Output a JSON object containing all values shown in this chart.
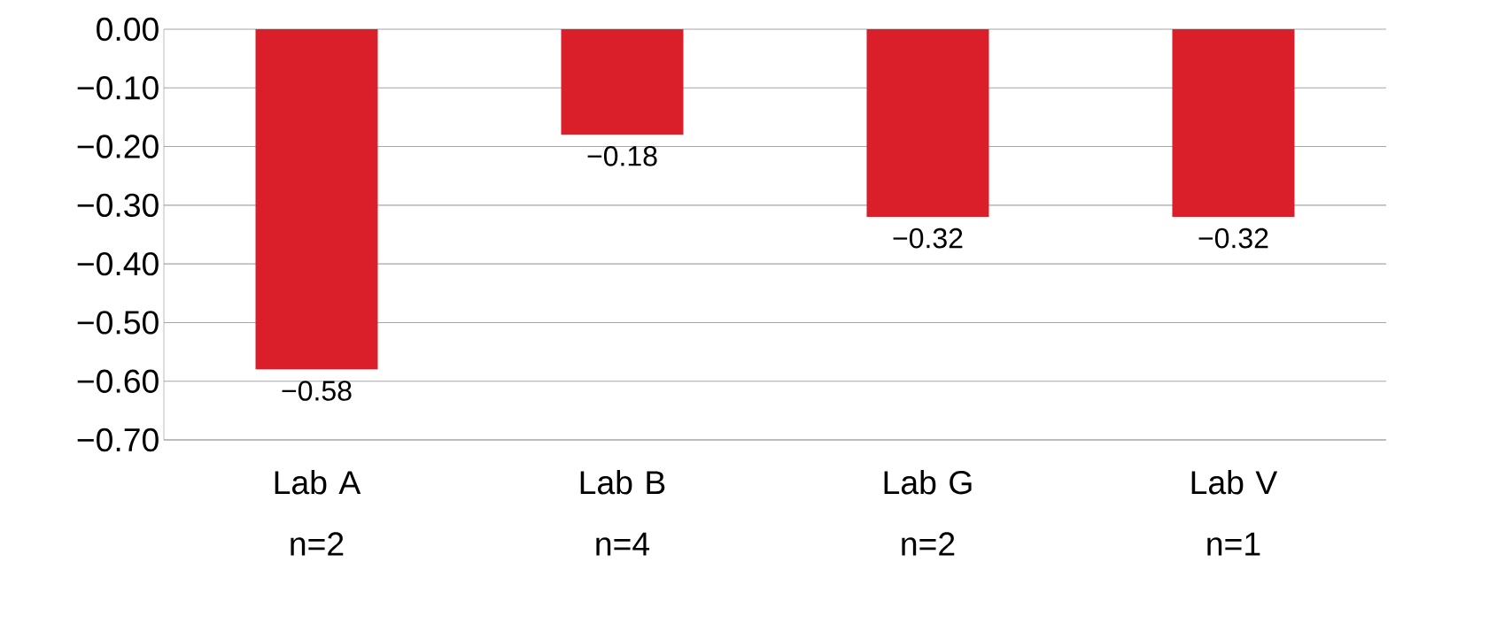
{
  "chart_data": {
    "type": "bar",
    "categories": [
      "Lab A n=2",
      "Lab B n=4",
      "Lab G n=2",
      "Lab V n=1"
    ],
    "values": [
      -0.58,
      -0.18,
      -0.32,
      -0.32
    ],
    "value_labels": [
      "−0.58",
      "−0.18",
      "−0.32",
      "−0.32"
    ],
    "color": "#da1f2a",
    "ylim": [
      -0.7,
      0
    ],
    "yticks": [
      {
        "value": 0,
        "label": "0.00"
      },
      {
        "value": -0.1,
        "label": "−0.10"
      },
      {
        "value": -0.2,
        "label": "−0.20"
      },
      {
        "value": -0.3,
        "label": "−0.30"
      },
      {
        "value": -0.4,
        "label": "−0.40"
      },
      {
        "value": -0.5,
        "label": "−0.50"
      },
      {
        "value": -0.6,
        "label": "−0.60"
      },
      {
        "value": -0.7,
        "label": "−0.70"
      }
    ],
    "grid": "y"
  }
}
